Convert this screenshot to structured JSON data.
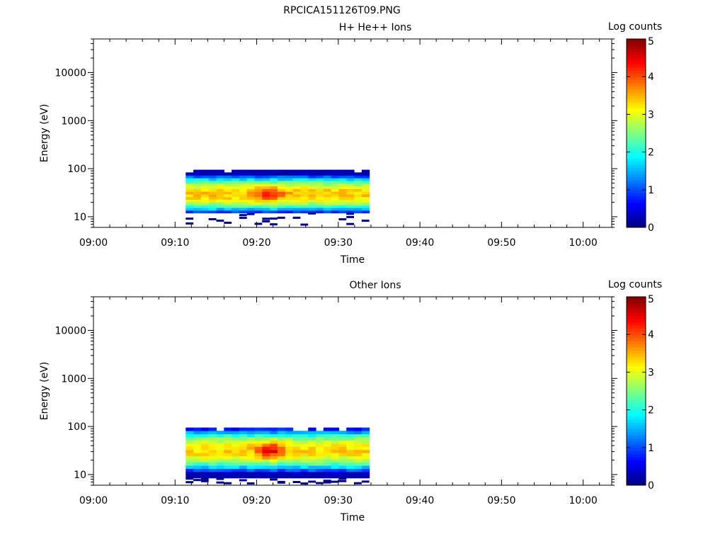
{
  "figure_title": "RPCICA151126T09.PNG",
  "chart_data": [
    {
      "type": "heatmap",
      "title": "H+ He++ Ions",
      "xlabel": "Time",
      "ylabel": "Energy (eV)",
      "x_ticks": [
        "09:00",
        "09:10",
        "09:20",
        "09:30",
        "09:40",
        "09:50",
        "10:00"
      ],
      "x_range_minutes": [
        0,
        63.5
      ],
      "y_scale": "log",
      "y_range": [
        6,
        50000
      ],
      "y_ticks": [
        10,
        100,
        1000,
        10000
      ],
      "y_tick_labels": [
        "10",
        "100",
        "1000",
        "10000"
      ],
      "colorbar": {
        "label": "Log counts",
        "range": [
          0,
          5
        ],
        "ticks": [
          "0",
          "1",
          "2",
          "3",
          "4",
          "5"
        ]
      },
      "data_extent": {
        "time_start_min": 11.3,
        "time_end_min": 33.8,
        "energy_min_eV": 12,
        "energy_max_eV": 95
      },
      "peak": {
        "time_min": 21.5,
        "energy_eV": 30,
        "log_counts": 4.3
      },
      "typical_core_log_counts": 3.4
    },
    {
      "type": "heatmap",
      "title": "Other Ions",
      "xlabel": "Time",
      "ylabel": "Energy (eV)",
      "x_ticks": [
        "09:00",
        "09:10",
        "09:20",
        "09:30",
        "09:40",
        "09:50",
        "10:00"
      ],
      "x_range_minutes": [
        0,
        63.5
      ],
      "y_scale": "log",
      "y_range": [
        6,
        50000
      ],
      "y_ticks": [
        10,
        100,
        1000,
        10000
      ],
      "y_tick_labels": [
        "10",
        "100",
        "1000",
        "10000"
      ],
      "colorbar": {
        "label": "Log counts",
        "range": [
          0,
          5
        ],
        "ticks": [
          "0",
          "1",
          "2",
          "3",
          "4",
          "5"
        ]
      },
      "data_extent": {
        "time_start_min": 11.3,
        "time_end_min": 33.8,
        "energy_min_eV": 8.5,
        "energy_max_eV": 95
      },
      "peak": {
        "time_min": 21.5,
        "energy_eV": 32,
        "log_counts": 4.5
      },
      "typical_core_log_counts": 3.3
    }
  ]
}
